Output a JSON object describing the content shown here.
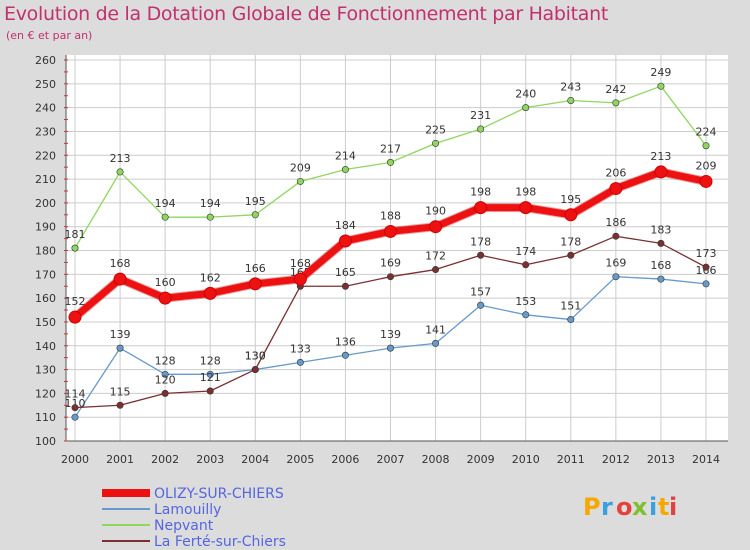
{
  "title": "Evolution de la Dotation Globale de Fonctionnement par Habitant",
  "subtitle": "(en € et par an)",
  "logo": {
    "text": "Proxiti",
    "colors": [
      "#f6a800",
      "#3aa0e0",
      "#e34040",
      "#7fbe2e",
      "#3aa0e0",
      "#f6a800",
      "#e34040"
    ]
  },
  "colors": {
    "background": "#dcdcdc",
    "plot_background": "#ffffff",
    "grid": "#cccccc",
    "title": "#c2306e",
    "legend_text": "#5566e0"
  },
  "chart_data": {
    "type": "line",
    "x": [
      2000,
      2001,
      2002,
      2003,
      2004,
      2005,
      2006,
      2007,
      2008,
      2009,
      2010,
      2011,
      2012,
      2013,
      2014
    ],
    "ylim": [
      100,
      260
    ],
    "yticks": [
      100,
      110,
      120,
      130,
      140,
      150,
      160,
      170,
      180,
      190,
      200,
      210,
      220,
      230,
      240,
      250,
      260
    ],
    "grid": true,
    "legend_position": "bottom-left",
    "series": [
      {
        "name": "Nepvant",
        "color": "#8fd65f",
        "values": [
          181,
          213,
          194,
          194,
          195,
          209,
          214,
          217,
          225,
          231,
          240,
          243,
          242,
          249,
          224
        ]
      },
      {
        "name": "Lamouilly",
        "color": "#6699cc",
        "values": [
          110,
          139,
          128,
          128,
          130,
          133,
          136,
          139,
          141,
          157,
          153,
          151,
          169,
          168,
          166
        ]
      },
      {
        "name": "La Ferté-sur-Chiers",
        "color": "#7a3030",
        "values": [
          114,
          115,
          120,
          121,
          130,
          165,
          165,
          169,
          172,
          178,
          174,
          178,
          186,
          183,
          173
        ]
      },
      {
        "name": "OLIZY-SUR-CHIERS",
        "color": "#ee1111",
        "values": [
          152,
          168,
          160,
          162,
          166,
          168,
          184,
          188,
          190,
          198,
          198,
          195,
          206,
          213,
          209
        ]
      }
    ]
  }
}
